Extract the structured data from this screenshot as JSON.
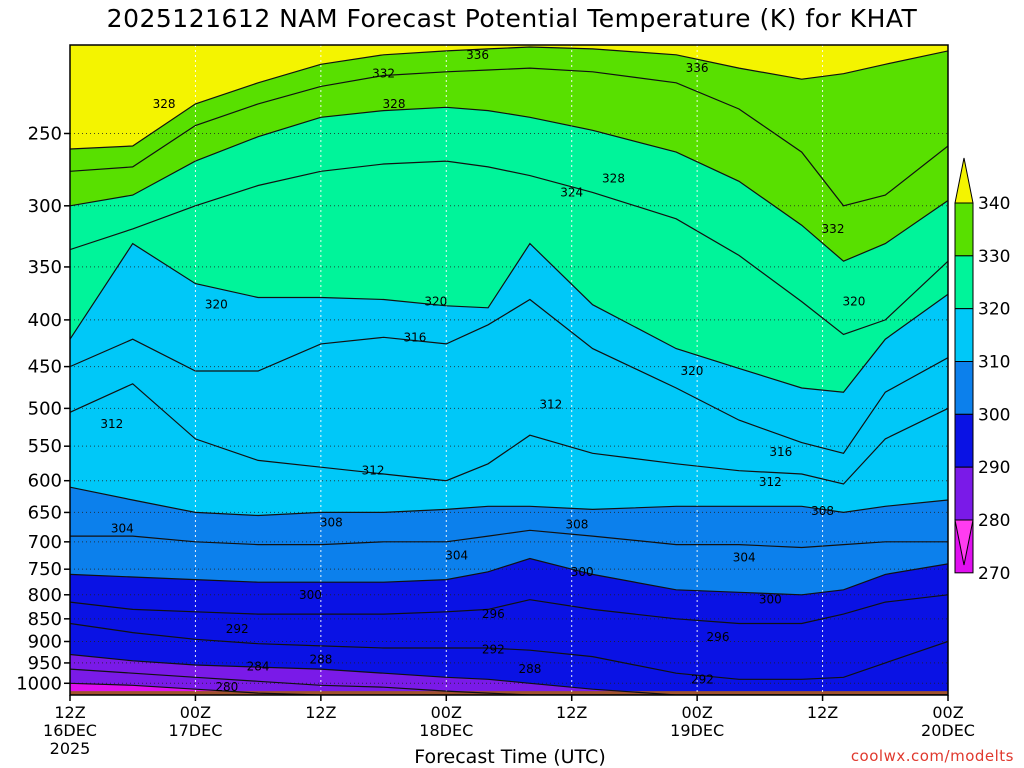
{
  "title": "2025121612 NAM Forecast Potential Temperature (K) for KHAT",
  "credit": "coolwx.com/modelts",
  "chart_data": {
    "type": "heatmap",
    "title": "2025121612 NAM Forecast Potential Temperature (K) for KHAT",
    "xlabel": "Forecast Time (UTC)",
    "ylabel": "",
    "x_ticks": [
      {
        "hour": 0,
        "label": "12Z",
        "sub": "16DEC",
        "sub2": "2025"
      },
      {
        "hour": 12,
        "label": "00Z",
        "sub": "17DEC",
        "sub2": ""
      },
      {
        "hour": 24,
        "label": "12Z",
        "sub": "",
        "sub2": ""
      },
      {
        "hour": 36,
        "label": "00Z",
        "sub": "18DEC",
        "sub2": ""
      },
      {
        "hour": 48,
        "label": "12Z",
        "sub": "",
        "sub2": ""
      },
      {
        "hour": 60,
        "label": "00Z",
        "sub": "19DEC",
        "sub2": ""
      },
      {
        "hour": 72,
        "label": "12Z",
        "sub": "",
        "sub2": ""
      },
      {
        "hour": 84,
        "label": "00Z",
        "sub": "20DEC",
        "sub2": ""
      }
    ],
    "xlim": [
      0,
      84
    ],
    "y_scale": "log",
    "ylim": [
      1030,
      200
    ],
    "y_ticks": [
      250,
      300,
      350,
      400,
      450,
      500,
      550,
      600,
      650,
      700,
      750,
      800,
      850,
      900,
      950,
      1000
    ],
    "grid": true,
    "colorbar": {
      "labels": [
        340,
        330,
        320,
        310,
        300,
        290,
        280,
        270
      ],
      "bins": [
        {
          "from": 330,
          "to": 340,
          "color": "#58e000"
        },
        {
          "from": 320,
          "to": 330,
          "color": "#00f49a"
        },
        {
          "from": 310,
          "to": 320,
          "color": "#00c8f8"
        },
        {
          "from": 300,
          "to": 310,
          "color": "#0c80ec"
        },
        {
          "from": 290,
          "to": 300,
          "color": "#0a12e4"
        },
        {
          "from": 280,
          "to": 290,
          "color": "#7a1ae8"
        },
        {
          "from": 270,
          "to": 280,
          "color": "#e010f0"
        },
        {
          "from": 260,
          "to": 270,
          "color": "#ff3cf0"
        }
      ],
      "top_arrow_color": "#f4f400"
    },
    "colors": {
      "above_340": "#f4f400",
      "terrain": "#a0522d"
    },
    "levels_K": [
      {
        "theta": 336,
        "p": [
          260,
          258,
          232,
          220,
          210,
          205,
          203,
          202,
          201,
          202,
          205,
          212,
          218,
          215,
          210,
          203
        ]
      },
      {
        "theta": 332,
        "p": [
          275,
          272,
          245,
          232,
          222,
          216,
          214,
          213,
          212,
          214,
          220,
          235,
          262,
          300,
          292,
          258
        ]
      },
      {
        "theta": 328,
        "p": [
          300,
          292,
          268,
          252,
          240,
          236,
          234,
          236,
          240,
          248,
          262,
          282,
          315,
          345,
          330,
          296
        ]
      },
      {
        "theta": 324,
        "p": [
          335,
          318,
          300,
          285,
          275,
          270,
          268,
          272,
          278,
          290,
          310,
          340,
          382,
          415,
          400,
          345
        ]
      },
      {
        "theta": 320,
        "p": [
          420,
          330,
          365,
          378,
          378,
          380,
          386,
          388,
          330,
          385,
          430,
          452,
          475,
          480,
          420,
          375
        ]
      },
      {
        "theta": 316,
        "p": [
          450,
          420,
          455,
          455,
          425,
          418,
          425,
          405,
          380,
          430,
          475,
          515,
          545,
          560,
          480,
          440
        ]
      },
      {
        "theta": 312,
        "p": [
          505,
          470,
          540,
          570,
          580,
          590,
          600,
          575,
          535,
          560,
          575,
          585,
          590,
          605,
          540,
          500
        ]
      },
      {
        "theta": 308,
        "p": [
          610,
          630,
          650,
          655,
          650,
          650,
          645,
          640,
          640,
          645,
          640,
          640,
          640,
          650,
          640,
          630
        ]
      },
      {
        "theta": 304,
        "p": [
          690,
          690,
          700,
          705,
          705,
          700,
          700,
          690,
          680,
          690,
          705,
          705,
          710,
          705,
          700,
          700
        ]
      },
      {
        "theta": 300,
        "p": [
          760,
          765,
          770,
          775,
          775,
          775,
          770,
          755,
          730,
          760,
          790,
          795,
          800,
          790,
          760,
          740
        ]
      },
      {
        "theta": 296,
        "p": [
          815,
          830,
          835,
          840,
          840,
          840,
          835,
          830,
          810,
          830,
          850,
          860,
          860,
          840,
          815,
          800
        ]
      },
      {
        "theta": 292,
        "p": [
          860,
          880,
          895,
          905,
          910,
          915,
          915,
          915,
          920,
          935,
          975,
          990,
          990,
          985,
          950,
          900
        ]
      },
      {
        "theta": 288,
        "p": [
          930,
          945,
          955,
          960,
          965,
          975,
          985,
          990,
          1000,
          1015,
          1030,
          1030,
          1030,
          1030,
          1030,
          1030
        ]
      },
      {
        "theta": 284,
        "p": [
          965,
          975,
          985,
          995,
          1005,
          1010,
          1020,
          1025,
          1030,
          1030,
          1030,
          1030,
          1030,
          1030,
          1030,
          1030
        ]
      },
      {
        "theta": 280,
        "p": [
          1000,
          1005,
          1015,
          1025,
          1030,
          1030,
          1030,
          1030,
          1030,
          1030,
          1030,
          1030,
          1030,
          1030,
          1030,
          1030
        ]
      }
    ],
    "level_hours": [
      0,
      6,
      12,
      18,
      24,
      30,
      36,
      40,
      44,
      50,
      58,
      64,
      70,
      74,
      78,
      84
    ],
    "contour_labels": [
      {
        "text": "336",
        "hour": 39,
        "p": 205
      },
      {
        "text": "336",
        "hour": 60,
        "p": 212
      },
      {
        "text": "332",
        "hour": 30,
        "p": 215
      },
      {
        "text": "328",
        "hour": 9,
        "p": 232
      },
      {
        "text": "328",
        "hour": 31,
        "p": 232
      },
      {
        "text": "328",
        "hour": 52,
        "p": 280
      },
      {
        "text": "332",
        "hour": 73,
        "p": 318
      },
      {
        "text": "324",
        "hour": 48,
        "p": 290
      },
      {
        "text": "320",
        "hour": 14,
        "p": 385
      },
      {
        "text": "320",
        "hour": 35,
        "p": 382
      },
      {
        "text": "320",
        "hour": 75,
        "p": 382
      },
      {
        "text": "316",
        "hour": 33,
        "p": 418
      },
      {
        "text": "320",
        "hour": 59.5,
        "p": 455
      },
      {
        "text": "312",
        "hour": 4,
        "p": 520
      },
      {
        "text": "312",
        "hour": 46,
        "p": 495
      },
      {
        "text": "316",
        "hour": 68,
        "p": 558
      },
      {
        "text": "312",
        "hour": 29,
        "p": 585
      },
      {
        "text": "312",
        "hour": 67,
        "p": 602
      },
      {
        "text": "308",
        "hour": 72,
        "p": 648
      },
      {
        "text": "304",
        "hour": 5,
        "p": 677
      },
      {
        "text": "308",
        "hour": 25,
        "p": 667
      },
      {
        "text": "308",
        "hour": 48.5,
        "p": 670
      },
      {
        "text": "304",
        "hour": 37,
        "p": 725
      },
      {
        "text": "304",
        "hour": 64.5,
        "p": 728
      },
      {
        "text": "300",
        "hour": 49,
        "p": 755
      },
      {
        "text": "300",
        "hour": 23,
        "p": 800
      },
      {
        "text": "300",
        "hour": 67,
        "p": 810
      },
      {
        "text": "296",
        "hour": 40.5,
        "p": 840
      },
      {
        "text": "296",
        "hour": 62,
        "p": 890
      },
      {
        "text": "292",
        "hour": 16,
        "p": 872
      },
      {
        "text": "292",
        "hour": 40.5,
        "p": 918
      },
      {
        "text": "288",
        "hour": 24,
        "p": 942
      },
      {
        "text": "288",
        "hour": 44,
        "p": 965
      },
      {
        "text": "284",
        "hour": 18,
        "p": 958
      },
      {
        "text": "292",
        "hour": 60.5,
        "p": 990
      },
      {
        "text": "280",
        "hour": 15,
        "p": 1010
      }
    ]
  }
}
